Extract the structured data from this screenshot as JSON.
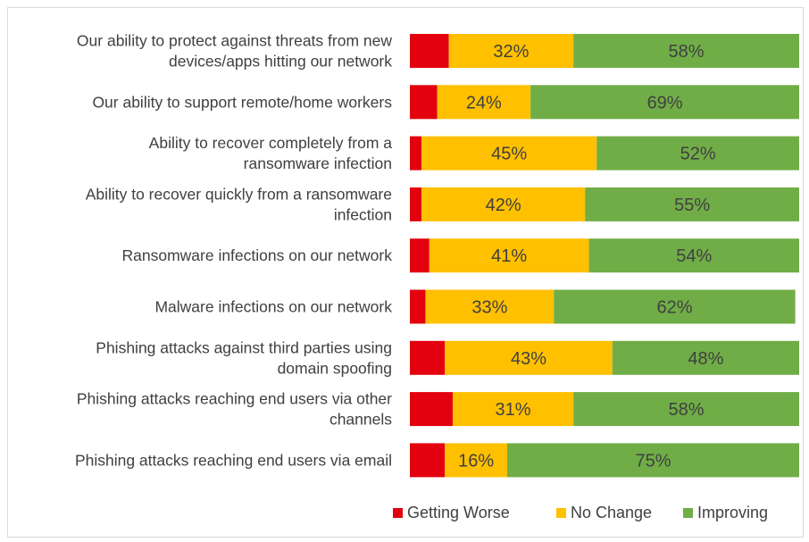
{
  "chart_data": {
    "type": "bar",
    "orientation": "horizontal",
    "stacked": true,
    "categories": [
      [
        "Our ability to protect against threats from new",
        "devices/apps hitting our network"
      ],
      [
        "Our ability to support remote/home workers"
      ],
      [
        "Ability to recover completely from a",
        "ransomware infection"
      ],
      [
        "Ability to recover quickly from a ransomware",
        "infection"
      ],
      [
        "Ransomware infections on our network"
      ],
      [
        "Malware infections on our network"
      ],
      [
        "Phishing attacks against third parties using",
        "domain spoofing"
      ],
      [
        "Phishing attacks reaching end users via other",
        "channels"
      ],
      [
        "Phishing attacks reaching end users via email"
      ]
    ],
    "series": [
      {
        "name": "Getting Worse",
        "color": "#e3000f",
        "values": [
          10,
          7,
          3,
          3,
          5,
          4,
          9,
          11,
          9
        ],
        "show_labels": false
      },
      {
        "name": "No Change",
        "color": "#ffc000",
        "values": [
          32,
          24,
          45,
          42,
          41,
          33,
          43,
          31,
          16
        ],
        "show_labels": true
      },
      {
        "name": "Improving",
        "color": "#70ad47",
        "values": [
          58,
          69,
          52,
          55,
          54,
          62,
          48,
          58,
          75
        ],
        "show_labels": true
      }
    ],
    "value_suffix": "%",
    "xlim": [
      0,
      100
    ],
    "grid": false,
    "legend": "bottom-right"
  }
}
